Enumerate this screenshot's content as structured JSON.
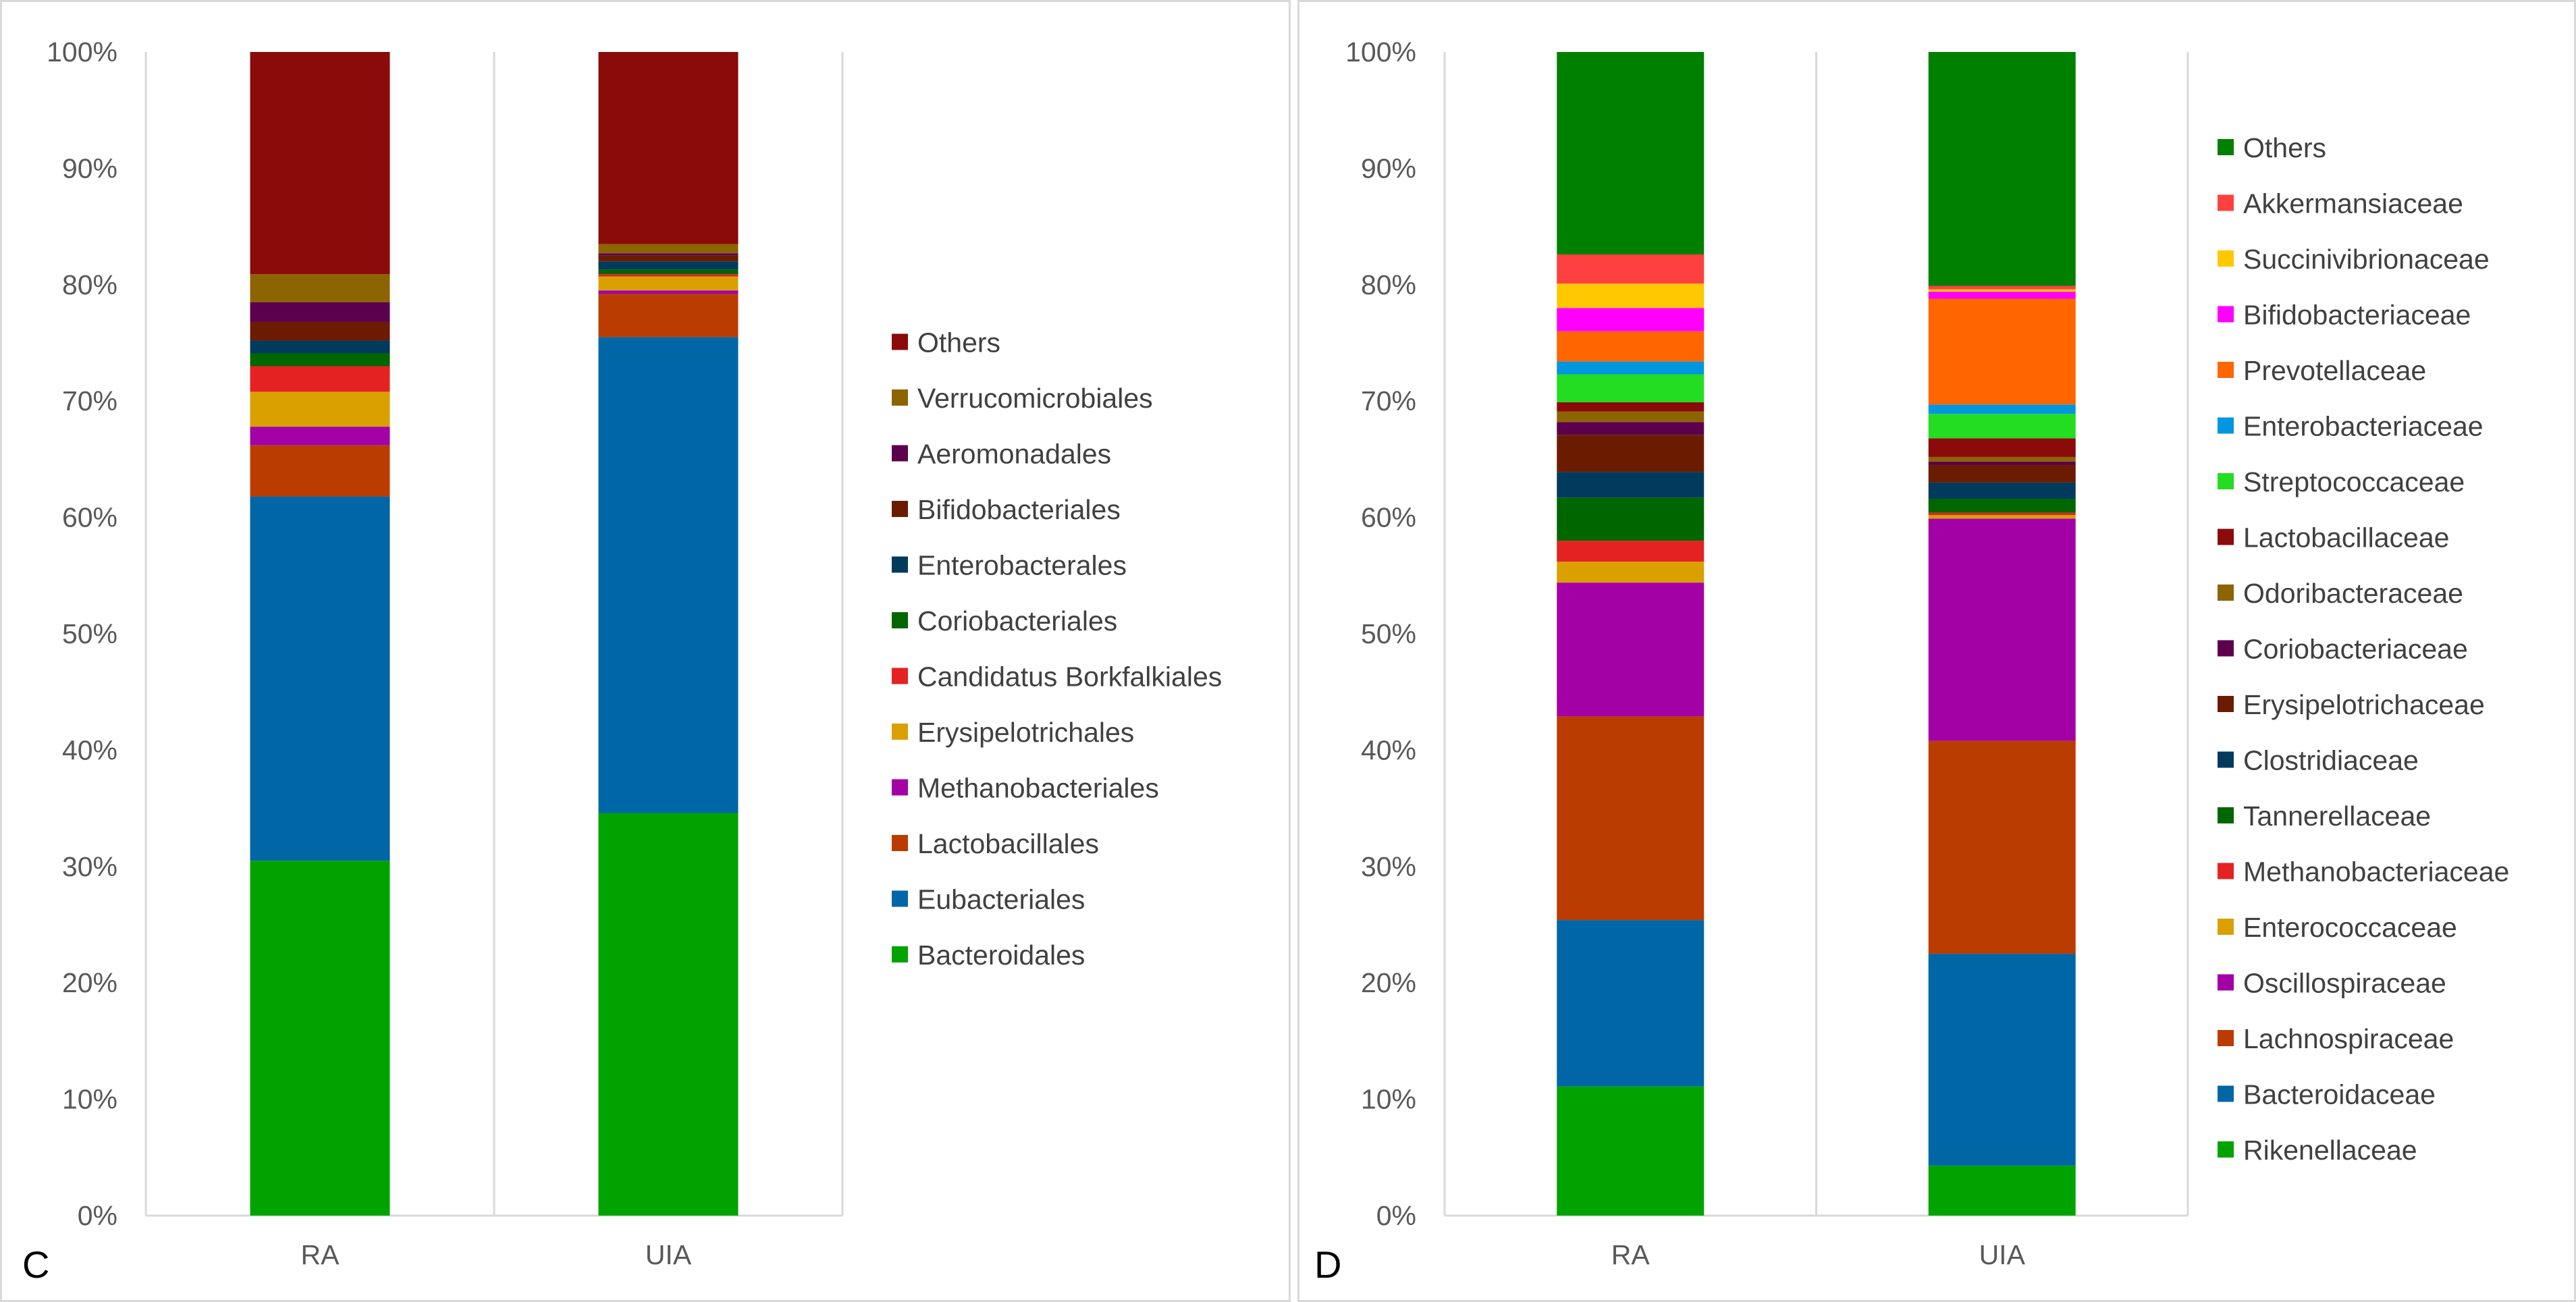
{
  "panels": [
    {
      "letter": "C",
      "chart_data": {
        "type": "bar",
        "stacked": true,
        "categories": [
          "RA",
          "UIA"
        ],
        "ylim": [
          0,
          100
        ],
        "yticks": [
          "0%",
          "10%",
          "20%",
          "30%",
          "40%",
          "50%",
          "60%",
          "70%",
          "80%",
          "90%",
          "100%"
        ],
        "series": [
          {
            "name": "Bacteroidales",
            "color": "#00a300",
            "values": [
              30.5,
              34.6
            ]
          },
          {
            "name": "Eubacteriales",
            "color": "#0066a6",
            "values": [
              31.3,
              40.9
            ]
          },
          {
            "name": "Lactobacillales",
            "color": "#bb3c00",
            "values": [
              4.4,
              3.7
            ]
          },
          {
            "name": "Methanobacteriales",
            "color": "#a300a6",
            "values": [
              1.6,
              0.3
            ]
          },
          {
            "name": "Erysipelotrichales",
            "color": "#d9a000",
            "values": [
              3.0,
              1.2
            ]
          },
          {
            "name": "Candidatus Borkfalkiales",
            "color": "#e52222",
            "values": [
              2.2,
              0.2
            ]
          },
          {
            "name": "Coriobacteriales",
            "color": "#006600",
            "values": [
              1.1,
              0.4
            ]
          },
          {
            "name": "Enterobacterales",
            "color": "#003a5c",
            "values": [
              1.1,
              0.7
            ]
          },
          {
            "name": "Bifidobacteriales",
            "color": "#6b1c00",
            "values": [
              1.6,
              0.5
            ]
          },
          {
            "name": "Aeromonadales",
            "color": "#5c004d",
            "values": [
              1.7,
              0.2
            ]
          },
          {
            "name": "Verrucomicrobiales",
            "color": "#8c6400",
            "values": [
              2.4,
              0.8
            ]
          },
          {
            "name": "Others",
            "color": "#8b0a0a",
            "values": [
              19.1,
              16.5
            ]
          }
        ]
      }
    },
    {
      "letter": "D",
      "chart_data": {
        "type": "bar",
        "stacked": true,
        "categories": [
          "RA",
          "UIA"
        ],
        "ylim": [
          0,
          100
        ],
        "yticks": [
          "0%",
          "10%",
          "20%",
          "30%",
          "40%",
          "50%",
          "60%",
          "70%",
          "80%",
          "90%",
          "100%"
        ],
        "series": [
          {
            "name": "Rikenellaceae",
            "color": "#00a300",
            "values": [
              11.1,
              4.3
            ]
          },
          {
            "name": "Bacteroidaceae",
            "color": "#0066a6",
            "values": [
              14.3,
              18.2
            ]
          },
          {
            "name": "Lachnospiraceae",
            "color": "#bb3c00",
            "values": [
              17.5,
              18.3
            ]
          },
          {
            "name": "Oscillospiraceae",
            "color": "#a300a6",
            "values": [
              11.5,
              19.1
            ]
          },
          {
            "name": "Enterococcaceae",
            "color": "#d9a000",
            "values": [
              1.8,
              0.3
            ]
          },
          {
            "name": "Methanobacteriaceae",
            "color": "#e52222",
            "values": [
              1.8,
              0.2
            ]
          },
          {
            "name": "Tannerellaceae",
            "color": "#006600",
            "values": [
              3.7,
              1.2
            ]
          },
          {
            "name": "Clostridiaceae",
            "color": "#003a5c",
            "values": [
              2.2,
              1.4
            ]
          },
          {
            "name": "Erysipelotrichaceae",
            "color": "#6b1c00",
            "values": [
              3.2,
              1.5
            ]
          },
          {
            "name": "Coriobacteriaceae",
            "color": "#5c004d",
            "values": [
              1.1,
              0.3
            ]
          },
          {
            "name": "Odoribacteraceae",
            "color": "#8c6400",
            "values": [
              0.9,
              0.4
            ]
          },
          {
            "name": "Lactobacillaceae",
            "color": "#8b0a0a",
            "values": [
              0.8,
              1.6
            ]
          },
          {
            "name": "Streptococcaceae",
            "color": "#22dd22",
            "values": [
              2.4,
              2.1
            ]
          },
          {
            "name": "Enterobacteriaceae",
            "color": "#0096e0",
            "values": [
              1.1,
              0.8
            ]
          },
          {
            "name": "Prevotellaceae",
            "color": "#ff6600",
            "values": [
              2.6,
              9.1
            ]
          },
          {
            "name": "Bifidobacteriaceae",
            "color": "#ff00ff",
            "values": [
              2.0,
              0.6
            ]
          },
          {
            "name": "Succinivibrionaceae",
            "color": "#ffc800",
            "values": [
              2.1,
              0.2
            ]
          },
          {
            "name": "Akkermansiaceae",
            "color": "#ff4040",
            "values": [
              2.5,
              0.3
            ]
          },
          {
            "name": "Others",
            "color": "#008000",
            "values": [
              17.4,
              20.1
            ]
          }
        ]
      }
    }
  ]
}
